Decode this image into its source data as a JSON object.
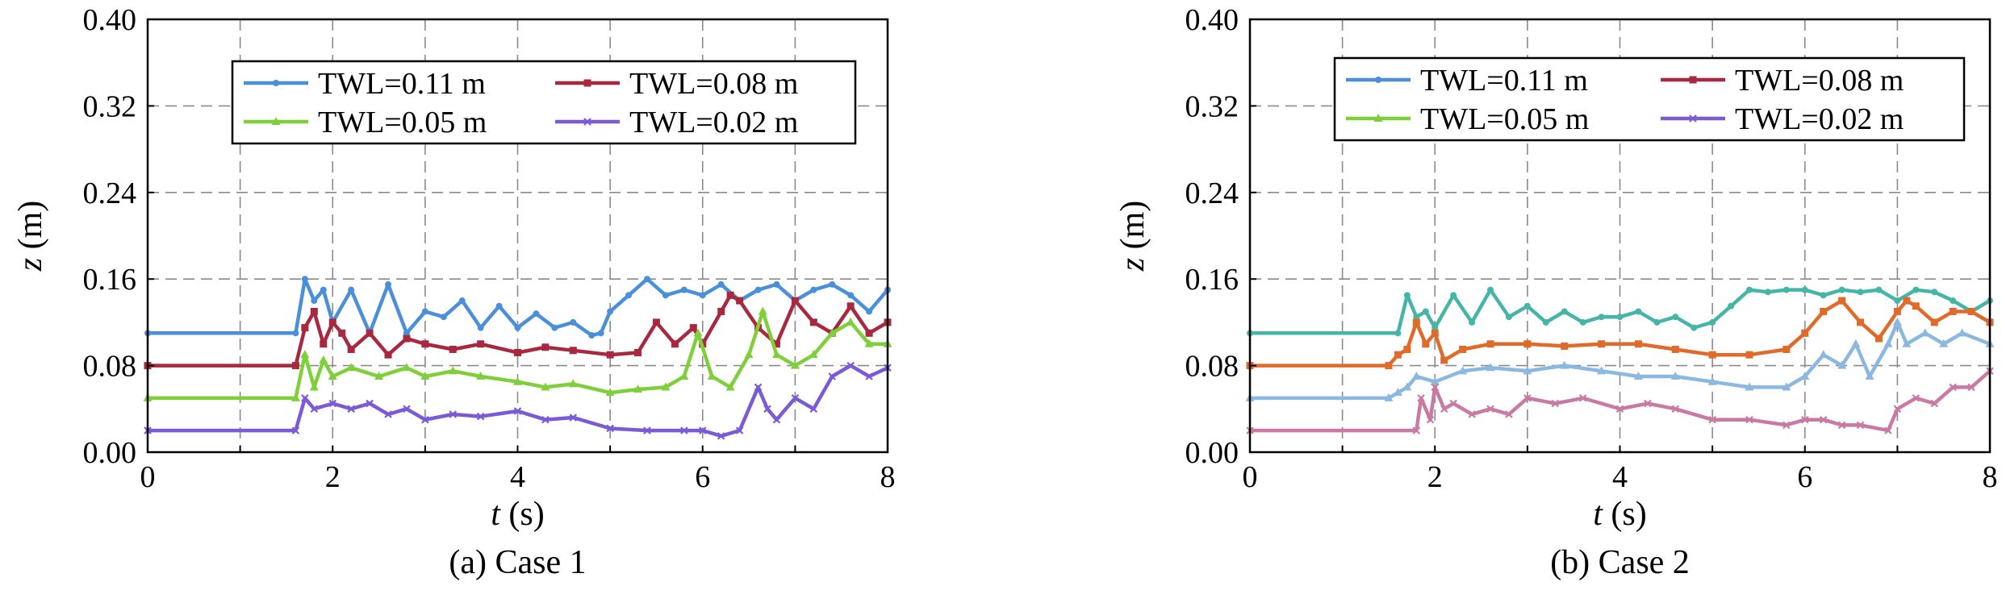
{
  "chart_data": [
    {
      "type": "line",
      "caption": "(a) Case 1",
      "xlabel_var": "t",
      "xlabel_unit": " (s)",
      "ylabel_var": "z",
      "ylabel_unit": " (m)",
      "xlim": [
        0,
        8
      ],
      "ylim": [
        0,
        0.4
      ],
      "xticks": [
        "0",
        "2",
        "4",
        "6",
        "8"
      ],
      "yticks": [
        "0.00",
        "0.08",
        "0.16",
        "0.24",
        "0.32",
        "0.40"
      ],
      "grid": true,
      "legend_position": "top-right",
      "series": [
        {
          "name": "TWL=0.11 m",
          "color": "#4a8fd9",
          "marker": "circle",
          "x": [
            0,
            1.6,
            1.7,
            1.8,
            1.9,
            2.0,
            2.2,
            2.4,
            2.6,
            2.8,
            3.0,
            3.2,
            3.4,
            3.6,
            3.8,
            4.0,
            4.2,
            4.4,
            4.6,
            4.8,
            4.9,
            5.0,
            5.2,
            5.4,
            5.6,
            5.8,
            6.0,
            6.2,
            6.4,
            6.6,
            6.8,
            7.0,
            7.2,
            7.4,
            7.6,
            7.8,
            8.0
          ],
          "y": [
            0.11,
            0.11,
            0.16,
            0.14,
            0.15,
            0.12,
            0.15,
            0.11,
            0.155,
            0.11,
            0.13,
            0.125,
            0.14,
            0.115,
            0.135,
            0.115,
            0.128,
            0.115,
            0.12,
            0.108,
            0.11,
            0.13,
            0.145,
            0.16,
            0.145,
            0.15,
            0.145,
            0.155,
            0.14,
            0.15,
            0.155,
            0.14,
            0.15,
            0.155,
            0.145,
            0.13,
            0.15
          ]
        },
        {
          "name": "TWL=0.08 m",
          "color": "#a8283f",
          "marker": "square",
          "x": [
            0,
            1.6,
            1.7,
            1.8,
            1.9,
            2.0,
            2.1,
            2.2,
            2.4,
            2.6,
            2.8,
            3.0,
            3.3,
            3.6,
            4.0,
            4.3,
            4.6,
            5.0,
            5.3,
            5.5,
            5.7,
            5.9,
            6.0,
            6.2,
            6.3,
            6.4,
            6.6,
            6.8,
            7.0,
            7.2,
            7.4,
            7.6,
            7.8,
            8.0
          ],
          "y": [
            0.08,
            0.08,
            0.115,
            0.13,
            0.1,
            0.12,
            0.11,
            0.095,
            0.11,
            0.09,
            0.105,
            0.1,
            0.095,
            0.1,
            0.092,
            0.097,
            0.094,
            0.09,
            0.092,
            0.12,
            0.1,
            0.115,
            0.1,
            0.13,
            0.145,
            0.14,
            0.115,
            0.1,
            0.14,
            0.12,
            0.11,
            0.135,
            0.11,
            0.12
          ]
        },
        {
          "name": "TWL=0.05 m",
          "color": "#7fcf3a",
          "marker": "triangle",
          "x": [
            0,
            1.6,
            1.7,
            1.8,
            1.9,
            2.0,
            2.2,
            2.5,
            2.8,
            3.0,
            3.3,
            3.6,
            4.0,
            4.3,
            4.6,
            5.0,
            5.3,
            5.6,
            5.8,
            5.95,
            6.1,
            6.3,
            6.5,
            6.65,
            6.8,
            7.0,
            7.2,
            7.4,
            7.6,
            7.8,
            8.0
          ],
          "y": [
            0.05,
            0.05,
            0.09,
            0.06,
            0.085,
            0.07,
            0.078,
            0.07,
            0.078,
            0.07,
            0.075,
            0.07,
            0.065,
            0.06,
            0.063,
            0.055,
            0.058,
            0.06,
            0.07,
            0.11,
            0.07,
            0.06,
            0.09,
            0.13,
            0.09,
            0.08,
            0.09,
            0.11,
            0.12,
            0.1,
            0.1
          ]
        },
        {
          "name": "TWL=0.02 m",
          "color": "#7b5ad6",
          "marker": "x",
          "x": [
            0,
            1.6,
            1.7,
            1.8,
            2.0,
            2.2,
            2.4,
            2.6,
            2.8,
            3.0,
            3.3,
            3.6,
            4.0,
            4.3,
            4.6,
            5.0,
            5.4,
            5.8,
            6.0,
            6.2,
            6.4,
            6.6,
            6.7,
            6.8,
            7.0,
            7.2,
            7.4,
            7.6,
            7.8,
            8.0
          ],
          "y": [
            0.02,
            0.02,
            0.05,
            0.04,
            0.045,
            0.04,
            0.045,
            0.035,
            0.04,
            0.03,
            0.035,
            0.033,
            0.038,
            0.03,
            0.032,
            0.022,
            0.02,
            0.02,
            0.02,
            0.015,
            0.02,
            0.06,
            0.04,
            0.03,
            0.05,
            0.04,
            0.07,
            0.08,
            0.07,
            0.078
          ]
        }
      ]
    },
    {
      "type": "line",
      "caption": "(b) Case 2",
      "xlabel_var": "t",
      "xlabel_unit": " (s)",
      "ylabel_var": "z",
      "ylabel_unit": " (m)",
      "xlim": [
        0,
        8
      ],
      "ylim": [
        0,
        0.4
      ],
      "xticks": [
        "0",
        "2",
        "4",
        "6",
        "8"
      ],
      "yticks": [
        "0.00",
        "0.08",
        "0.16",
        "0.24",
        "0.32",
        "0.40"
      ],
      "grid": true,
      "legend_position": "top-right",
      "legend_colors": [
        "#4a8fd9",
        "#a8283f",
        "#7fcf3a",
        "#7b5ad6"
      ],
      "series": [
        {
          "name": "TWL=0.11 m",
          "color": "#45b5a8",
          "marker": "circle",
          "x": [
            0,
            1.6,
            1.7,
            1.8,
            1.9,
            2.0,
            2.2,
            2.4,
            2.6,
            2.8,
            3.0,
            3.2,
            3.4,
            3.6,
            3.8,
            4.0,
            4.2,
            4.4,
            4.6,
            4.8,
            5.0,
            5.2,
            5.4,
            5.6,
            5.8,
            6.0,
            6.2,
            6.4,
            6.6,
            6.8,
            7.0,
            7.2,
            7.4,
            7.6,
            7.8,
            8.0
          ],
          "y": [
            0.11,
            0.11,
            0.145,
            0.125,
            0.13,
            0.115,
            0.145,
            0.12,
            0.15,
            0.125,
            0.135,
            0.12,
            0.13,
            0.12,
            0.125,
            0.125,
            0.13,
            0.12,
            0.125,
            0.115,
            0.12,
            0.135,
            0.15,
            0.148,
            0.15,
            0.15,
            0.145,
            0.15,
            0.148,
            0.15,
            0.14,
            0.15,
            0.148,
            0.14,
            0.13,
            0.14
          ]
        },
        {
          "name": "TWL=0.08 m",
          "color": "#e06a2a",
          "marker": "square",
          "x": [
            0,
            1.5,
            1.6,
            1.7,
            1.8,
            1.9,
            2.0,
            2.1,
            2.3,
            2.6,
            3.0,
            3.4,
            3.8,
            4.2,
            4.6,
            5.0,
            5.4,
            5.8,
            6.0,
            6.2,
            6.4,
            6.6,
            6.8,
            7.0,
            7.1,
            7.2,
            7.4,
            7.6,
            7.8,
            8.0
          ],
          "y": [
            0.08,
            0.08,
            0.09,
            0.095,
            0.12,
            0.1,
            0.11,
            0.085,
            0.095,
            0.1,
            0.1,
            0.098,
            0.1,
            0.1,
            0.095,
            0.09,
            0.09,
            0.095,
            0.11,
            0.13,
            0.14,
            0.12,
            0.105,
            0.13,
            0.14,
            0.135,
            0.12,
            0.13,
            0.13,
            0.12
          ]
        },
        {
          "name": "TWL=0.05 m",
          "color": "#8ab8e0",
          "marker": "triangle",
          "x": [
            0,
            1.5,
            1.6,
            1.7,
            1.8,
            2.0,
            2.3,
            2.6,
            3.0,
            3.4,
            3.8,
            4.2,
            4.6,
            5.0,
            5.4,
            5.8,
            6.0,
            6.2,
            6.4,
            6.55,
            6.7,
            6.9,
            7.0,
            7.1,
            7.3,
            7.5,
            7.7,
            8.0
          ],
          "y": [
            0.05,
            0.05,
            0.055,
            0.06,
            0.07,
            0.065,
            0.075,
            0.078,
            0.075,
            0.08,
            0.075,
            0.07,
            0.07,
            0.065,
            0.06,
            0.06,
            0.07,
            0.09,
            0.08,
            0.1,
            0.07,
            0.1,
            0.12,
            0.1,
            0.11,
            0.1,
            0.11,
            0.1
          ]
        },
        {
          "name": "TWL=0.02 m",
          "color": "#c97aa4",
          "marker": "x",
          "x": [
            0,
            1.8,
            1.85,
            1.95,
            2.0,
            2.1,
            2.2,
            2.4,
            2.6,
            2.8,
            3.0,
            3.3,
            3.6,
            4.0,
            4.3,
            4.6,
            5.0,
            5.4,
            5.8,
            6.0,
            6.2,
            6.4,
            6.6,
            6.9,
            7.0,
            7.2,
            7.4,
            7.6,
            7.8,
            8.0
          ],
          "y": [
            0.02,
            0.02,
            0.05,
            0.03,
            0.06,
            0.04,
            0.045,
            0.035,
            0.04,
            0.035,
            0.05,
            0.045,
            0.05,
            0.04,
            0.045,
            0.04,
            0.03,
            0.03,
            0.025,
            0.03,
            0.03,
            0.025,
            0.025,
            0.02,
            0.04,
            0.05,
            0.045,
            0.06,
            0.06,
            0.075
          ]
        }
      ]
    }
  ]
}
